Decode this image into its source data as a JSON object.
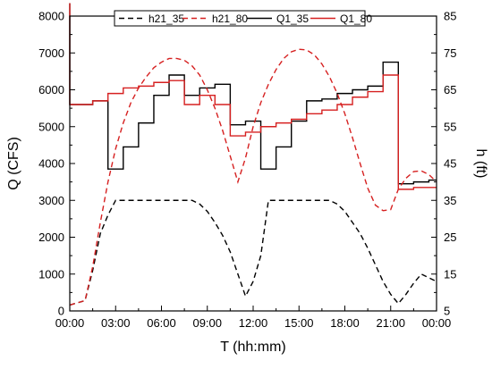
{
  "chart_data": {
    "type": "line",
    "title": "",
    "xlabel": "T (hh:mm)",
    "ylabel_left": "Q (CFS)",
    "ylabel_right": "h (ft)",
    "xlim": [
      0,
      24
    ],
    "ylim_left": [
      0,
      8000
    ],
    "ylim_right": [
      5,
      85
    ],
    "x_ticks": [
      0,
      3,
      6,
      9,
      12,
      15,
      18,
      21,
      24
    ],
    "x_tick_labels": [
      "00:00",
      "03:00",
      "06:00",
      "09:00",
      "12:00",
      "15:00",
      "18:00",
      "21:00",
      "00:00"
    ],
    "y_left_ticks": [
      0,
      1000,
      2000,
      3000,
      4000,
      5000,
      6000,
      7000,
      8000
    ],
    "y_left_tick_labels": [
      "0",
      "1000",
      "2000",
      "3000",
      "4000",
      "5000",
      "6000",
      "7000",
      "8000"
    ],
    "y_right_ticks": [
      5,
      15,
      25,
      35,
      45,
      55,
      65,
      75,
      85
    ],
    "y_right_tick_labels": [
      "5",
      "15",
      "25",
      "35",
      "45",
      "55",
      "65",
      "75",
      "85"
    ],
    "grid": false,
    "legend": "top-center",
    "legend_order": [
      "h21_35",
      "h21_80",
      "Q1_35",
      "Q1_80"
    ],
    "series": [
      {
        "name": "h21_35",
        "axis": "right",
        "color": "#000000",
        "dash": true,
        "step": false,
        "x": [
          0,
          1,
          1.5,
          2,
          2.5,
          3,
          4,
          5,
          6,
          7,
          8,
          8.5,
          9,
          9.5,
          10,
          10.5,
          11,
          11.5,
          12,
          12.5,
          13,
          14,
          15,
          16,
          17,
          17.5,
          18,
          18.5,
          19,
          19.5,
          20,
          20.5,
          21,
          21.5,
          22,
          22.5,
          23,
          24
        ],
        "y": [
          6.6,
          7.8,
          16,
          26,
          31,
          35,
          35,
          35,
          35,
          35,
          35,
          34,
          32,
          29,
          25.5,
          21,
          15,
          9,
          13,
          20,
          35,
          35,
          35,
          35,
          35,
          34,
          32,
          29,
          26,
          22,
          17.5,
          13,
          9.5,
          7,
          9.5,
          12.5,
          15,
          13
        ]
      },
      {
        "name": "h21_80",
        "axis": "right",
        "color": "#d62020",
        "dash": true,
        "step": false,
        "x": [
          0,
          1,
          1.5,
          2,
          2.5,
          3,
          3.5,
          4,
          4.5,
          5,
          5.5,
          6,
          6.5,
          7,
          7.5,
          8,
          8.5,
          9,
          9.5,
          10,
          10.5,
          11,
          11.5,
          12,
          12.5,
          13,
          13.5,
          14,
          14.5,
          15,
          15.5,
          16,
          16.5,
          17,
          17.5,
          18,
          18.5,
          19,
          19.5,
          20,
          20.5,
          21,
          21.5,
          22,
          22.5,
          23,
          23.5,
          24
        ],
        "y": [
          6.6,
          7.8,
          17,
          29,
          40,
          49,
          56,
          61.5,
          65.5,
          68.5,
          71,
          72.5,
          73.5,
          73.5,
          73,
          71.5,
          69,
          65,
          60,
          54,
          47,
          40,
          46.5,
          55,
          61.5,
          66.5,
          70.5,
          73.5,
          75.3,
          76,
          75.8,
          74.5,
          72,
          68.5,
          64,
          58.5,
          52,
          45,
          38.3,
          33.7,
          32.2,
          32.5,
          38,
          41,
          42.8,
          43,
          42,
          40
        ]
      },
      {
        "name": "Q1_35",
        "axis": "left",
        "color": "#000000",
        "dash": false,
        "step": true,
        "x": [
          0,
          1,
          1.5,
          2,
          2.5,
          3,
          3.5,
          4,
          4.5,
          5,
          5.5,
          6,
          6.5,
          7,
          7.5,
          8,
          8.5,
          9,
          9.5,
          10,
          10.5,
          11,
          11.5,
          12,
          12.5,
          13,
          13.5,
          14,
          14.5,
          15,
          15.5,
          16,
          16.5,
          17,
          17.5,
          18,
          18.5,
          19,
          19.5,
          20,
          20.5,
          21,
          21.5,
          22,
          22.5,
          23,
          23.5,
          24
        ],
        "y": [
          8350,
          5600,
          5600,
          5700,
          5700,
          3850,
          3850,
          4450,
          4450,
          5100,
          5100,
          5850,
          5850,
          6400,
          6400,
          5850,
          5850,
          6050,
          6050,
          6150,
          6150,
          5050,
          5050,
          5150,
          5150,
          3850,
          3850,
          4450,
          4450,
          5150,
          5150,
          5700,
          5700,
          5750,
          5750,
          5900,
          5900,
          6000,
          6000,
          6100,
          6100,
          6750,
          6750,
          3450,
          3450,
          3500,
          3500,
          3550
        ]
      },
      {
        "name": "Q1_80",
        "axis": "left",
        "color": "#d62020",
        "dash": false,
        "step": true,
        "x": [
          0,
          1,
          1.5,
          2,
          2.5,
          3,
          3.5,
          4,
          4.5,
          5,
          5.5,
          6,
          6.5,
          7,
          7.5,
          8,
          8.5,
          9,
          9.5,
          10,
          10.5,
          11,
          11.5,
          12,
          12.5,
          13,
          13.5,
          14,
          14.5,
          15,
          15.5,
          16,
          16.5,
          17,
          17.5,
          18,
          18.5,
          19,
          19.5,
          20,
          20.5,
          21,
          21.5,
          22,
          22.5,
          23,
          23.5,
          24
        ],
        "y": [
          8350,
          5600,
          5600,
          5700,
          5700,
          5900,
          5900,
          6050,
          6050,
          6100,
          6100,
          6200,
          6200,
          6250,
          6250,
          5600,
          5600,
          5850,
          5850,
          5600,
          5600,
          4750,
          4750,
          4850,
          4850,
          5000,
          5000,
          5100,
          5100,
          5200,
          5200,
          5350,
          5350,
          5450,
          5450,
          5600,
          5600,
          5800,
          5800,
          5950,
          5950,
          6400,
          6400,
          3300,
          3300,
          3350,
          3350,
          3350
        ]
      }
    ]
  }
}
